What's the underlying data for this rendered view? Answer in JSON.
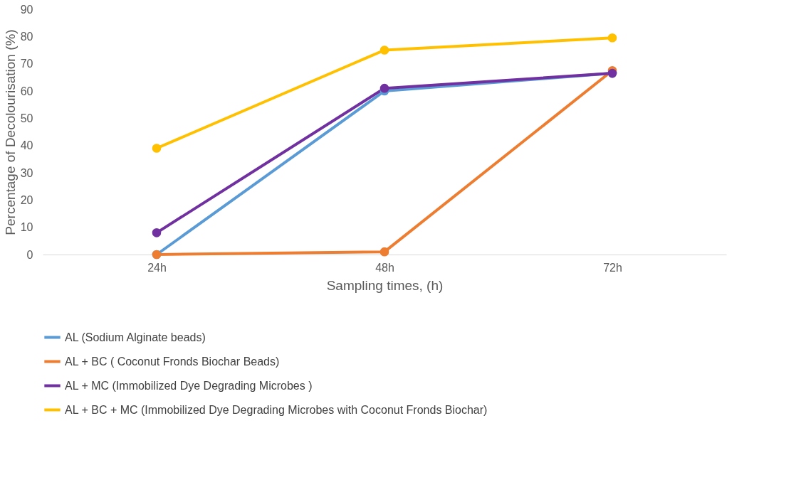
{
  "chart_data": {
    "type": "line",
    "xlabel": "Sampling times, (h)",
    "ylabel": "Percentage of Decolourisation (%)",
    "categories": [
      "24h",
      "48h",
      "72h"
    ],
    "series": [
      {
        "name": "AL (Sodium Alginate beads)",
        "color": "#5b9bd5",
        "values": [
          0,
          60,
          66.5
        ]
      },
      {
        "name": "AL + BC ( Coconut Fronds Biochar Beads)",
        "color": "#ed7d31",
        "values": [
          0,
          1,
          67.5
        ]
      },
      {
        "name": "AL + MC (Immobilized Dye Degrading Microbes )",
        "color": "#7030a0",
        "values": [
          8,
          61,
          66.5
        ]
      },
      {
        "name": "AL + BC + MC (Immobilized Dye Degrading Microbes with Coconut Fronds Biochar)",
        "color": "#ffc000",
        "values": [
          39,
          75,
          79.5
        ]
      }
    ],
    "ylim": [
      0,
      90
    ],
    "yticks": [
      0,
      10,
      20,
      30,
      40,
      50,
      60,
      70,
      80,
      90
    ],
    "grid": false,
    "legend": "bottom",
    "marker": "circle",
    "line_style": "solid"
  }
}
